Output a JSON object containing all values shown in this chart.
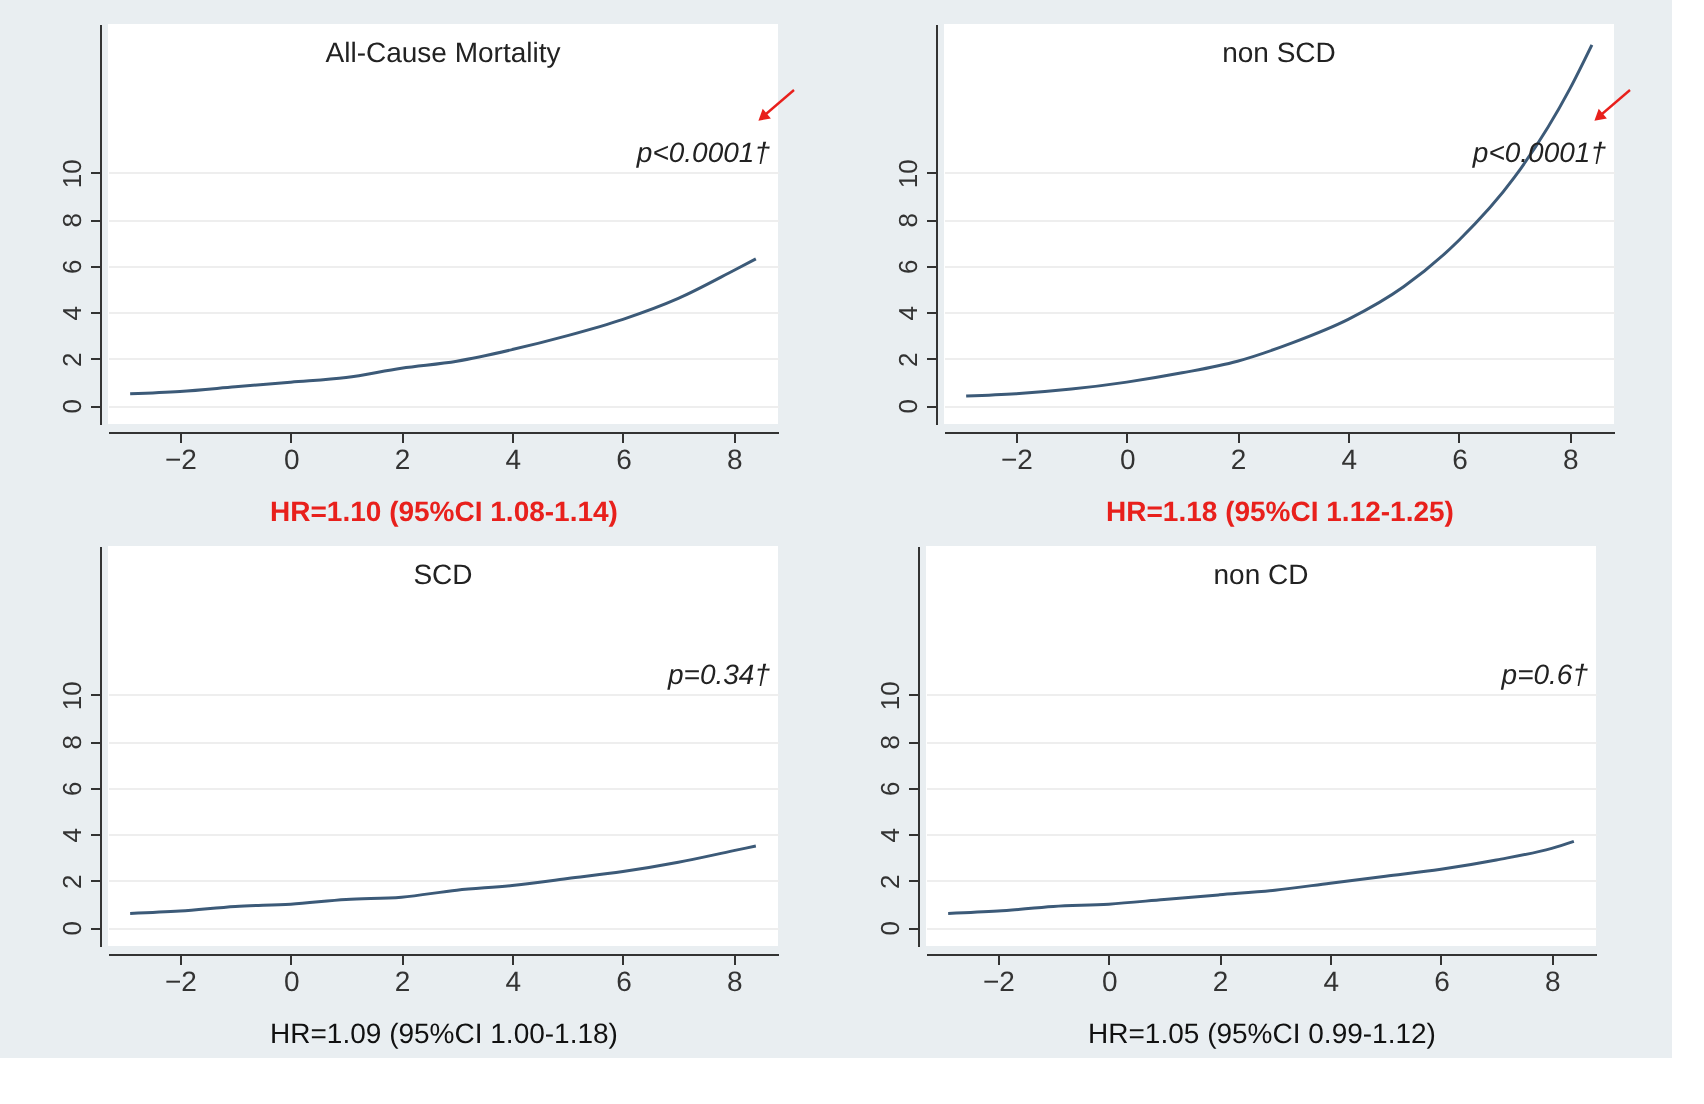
{
  "chart_data": [
    {
      "type": "line",
      "title": "All-Cause Mortality",
      "xlabel": "HR=1.10 (95%CI 1.08-1.14)",
      "annotations": [
        "p<0.0001†"
      ],
      "x": [
        -2.9,
        -2,
        -1,
        0,
        1,
        2,
        3,
        4,
        5,
        6,
        7,
        8,
        8.4
      ],
      "series": [
        {
          "color": "#3c5a78",
          "values": [
            0.5,
            0.6,
            0.8,
            1,
            1.2,
            1.6,
            1.9,
            2.4,
            3,
            3.7,
            4.6,
            5.8,
            6.3
          ]
        }
      ],
      "xlim": [
        -3.3,
        8.8
      ],
      "ylim": [
        -0.8,
        16.4
      ],
      "xticks": [
        -2,
        0,
        2,
        4,
        6,
        8
      ],
      "yticks": [
        0,
        2,
        4,
        6,
        8,
        10
      ],
      "grid": "y",
      "line_style": "solid"
    },
    {
      "type": "line",
      "title": "non SCD",
      "xlabel": "HR=1.18 (95%CI 1.12-1.25)",
      "annotations": [
        "p<0.0001†"
      ],
      "x": [
        -2.9,
        -2,
        -1,
        0,
        1,
        2,
        3,
        4,
        5,
        6,
        7,
        8,
        8.4
      ],
      "series": [
        {
          "color": "#3c5a78",
          "values": [
            0.4,
            0.5,
            0.7,
            1,
            1.4,
            1.9,
            2.7,
            3.7,
            5.1,
            7.1,
            9.8,
            13.6,
            15.5
          ]
        }
      ],
      "xlim": [
        -3.3,
        8.8
      ],
      "ylim": [
        -0.8,
        16.4
      ],
      "xticks": [
        -2,
        0,
        2,
        4,
        6,
        8
      ],
      "yticks": [
        0,
        2,
        4,
        6,
        8,
        10
      ],
      "grid": "y",
      "line_style": "solid"
    },
    {
      "type": "line",
      "title": "SCD",
      "xlabel": "HR=1.09 (95%CI 1.00-1.18)",
      "annotations": [
        "p=0.34†"
      ],
      "x": [
        -2.9,
        -2,
        -1,
        0,
        1,
        2,
        3,
        4,
        5,
        6,
        7,
        8,
        8.4
      ],
      "series": [
        {
          "color": "#3c5a78",
          "values": [
            0.6,
            0.7,
            0.9,
            1,
            1.2,
            1.3,
            1.6,
            1.8,
            2.1,
            2.4,
            2.8,
            3.3,
            3.5
          ]
        }
      ],
      "xlim": [
        -3.3,
        8.8
      ],
      "ylim": [
        -0.8,
        16.4
      ],
      "xticks": [
        -2,
        0,
        2,
        4,
        6,
        8
      ],
      "yticks": [
        0,
        2,
        4,
        6,
        8,
        10
      ],
      "grid": "y",
      "line_style": "solid"
    },
    {
      "type": "line",
      "title": "non CD",
      "xlabel": "HR=1.05 (95%CI 0.99-1.12)",
      "annotations": [
        "p=0.6†"
      ],
      "x": [
        -2.9,
        -2,
        -1,
        0,
        1,
        2,
        3,
        4,
        5,
        6,
        7,
        8,
        8.4
      ],
      "series": [
        {
          "color": "#3c5a78",
          "values": [
            0.6,
            0.7,
            0.9,
            1,
            1.2,
            1.4,
            1.6,
            1.9,
            2.2,
            2.5,
            2.9,
            3.4,
            3.7
          ]
        }
      ],
      "xlim": [
        -3.3,
        8.8
      ],
      "ylim": [
        -0.8,
        16.4
      ],
      "xticks": [
        -2,
        0,
        2,
        4,
        6,
        8
      ],
      "yticks": [
        0,
        2,
        4,
        6,
        8,
        10
      ],
      "grid": "y",
      "line_style": "solid"
    }
  ]
}
